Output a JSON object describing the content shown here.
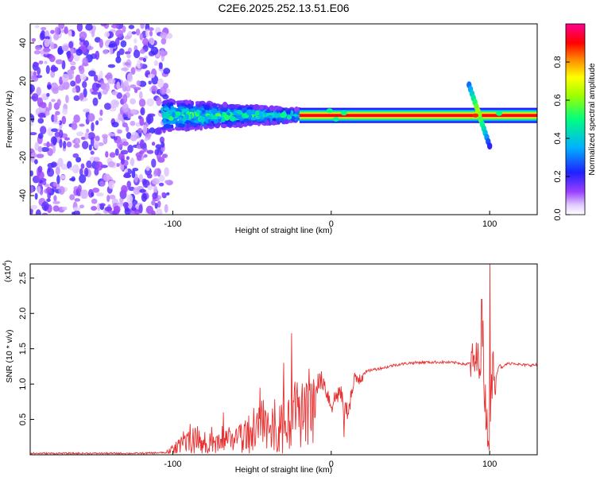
{
  "title": "C2E6.2025.252.13.51.E06",
  "chart_data": [
    {
      "type": "heatmap",
      "title": "C2E6.2025.252.13.51.E06",
      "xlabel": "Height of straight line (km)",
      "ylabel": "Frequency (Hz)",
      "xlim": [
        -190,
        130
      ],
      "ylim": [
        -50,
        50
      ],
      "x_ticks": [
        -100,
        0,
        100
      ],
      "y_ticks": [
        -40,
        -20,
        0,
        20,
        40
      ],
      "x_tick_labels": [
        "-100",
        "0",
        "100"
      ],
      "y_tick_labels": [
        "-40",
        "-20",
        "0",
        "20",
        "40"
      ],
      "colorbar": {
        "label": "Normalized spectral amplitude",
        "range": [
          0,
          1
        ],
        "ticks": [
          0.0,
          0.2,
          0.4,
          0.6,
          0.8
        ],
        "tick_labels": [
          "0.0",
          "0.2",
          "0.4",
          "0.6",
          "0.8"
        ],
        "colors": [
          "#ffffff",
          "#c9a3ff",
          "#8a2be2",
          "#0000ff",
          "#00c8ff",
          "#00ff66",
          "#ffff00",
          "#ff8000",
          "#ff0000",
          "#ff00aa"
        ]
      },
      "regions": [
        {
          "name": "noise",
          "x_range": [
            -190,
            -106
          ],
          "freq_range": [
            -50,
            50
          ],
          "amplitude": [
            0.0,
            0.25
          ]
        },
        {
          "name": "turbulent signal",
          "x_range": [
            -106,
            -20
          ],
          "freq_center": 2,
          "freq_spread": [
            8,
            3
          ],
          "amplitude": [
            0.25,
            0.6
          ]
        },
        {
          "name": "steady tone",
          "x_range": [
            -20,
            130
          ],
          "freq_center": 2,
          "amplitude": [
            0.7,
            1.0
          ]
        },
        {
          "name": "transient",
          "x_range": [
            87,
            100
          ],
          "freq_range": [
            -14,
            18
          ],
          "amplitude": [
            0.4,
            0.9
          ]
        }
      ]
    },
    {
      "type": "line",
      "xlabel": "Height of straight line (km)",
      "ylabel": "SNR (10 * v/v)",
      "multiplier_label": "(x10",
      "multiplier_exp": "4",
      "multiplier_close": ")",
      "xlim": [
        -190,
        130
      ],
      "ylim": [
        0,
        2.7
      ],
      "x_ticks": [
        -100,
        0,
        100
      ],
      "x_tick_labels": [
        "-100",
        "0",
        "100"
      ],
      "y_ticks": [
        0.5,
        1.0,
        1.5,
        2.0,
        2.5
      ],
      "y_tick_labels": [
        "0.5",
        "1.0",
        "1.5",
        "2.0",
        "2.5"
      ],
      "color": "#e83030",
      "series": [
        {
          "name": "SNR",
          "x": [
            -190,
            -120,
            -105,
            -100,
            -95,
            -90,
            -85,
            -80,
            -75,
            -70,
            -65,
            -60,
            -55,
            -50,
            -45,
            -40,
            -35,
            -30,
            -25,
            -20,
            -15,
            -10,
            -5,
            0,
            5,
            10,
            15,
            20,
            25,
            30,
            35,
            40,
            50,
            60,
            70,
            80,
            85,
            88,
            92,
            94,
            96,
            98,
            100,
            102,
            104,
            106,
            108,
            110,
            115,
            120,
            125,
            130
          ],
          "values": [
            0.02,
            0.02,
            0.03,
            0.1,
            0.22,
            0.3,
            0.28,
            0.32,
            0.22,
            0.25,
            0.3,
            0.35,
            0.4,
            0.48,
            0.55,
            0.6,
            0.62,
            0.68,
            0.75,
            0.85,
            0.95,
            1.0,
            1.05,
            0.7,
            0.9,
            0.6,
            1.05,
            1.15,
            1.2,
            1.22,
            1.24,
            1.27,
            1.3,
            1.31,
            1.31,
            1.3,
            1.28,
            1.3,
            1.32,
            1.4,
            1.2,
            0.5,
            0.25,
            1.3,
            1.1,
            1.28,
            1.22,
            1.28,
            1.3,
            1.27,
            1.27,
            1.27
          ],
          "spikes": [
            {
              "x": -68,
              "y": 0.6
            },
            {
              "x": -45,
              "y": 0.95
            },
            {
              "x": -30,
              "y": 1.3
            },
            {
              "x": -25,
              "y": 1.72
            },
            {
              "x": -14,
              "y": 1.22
            },
            {
              "x": -12,
              "y": 0.8
            },
            {
              "x": 8,
              "y": 0.25
            },
            {
              "x": 95,
              "y": 2.2
            },
            {
              "x": 96,
              "y": 1.9
            },
            {
              "x": 99,
              "y": 0.2
            },
            {
              "x": 100,
              "y": 2.7
            }
          ]
        }
      ]
    }
  ]
}
